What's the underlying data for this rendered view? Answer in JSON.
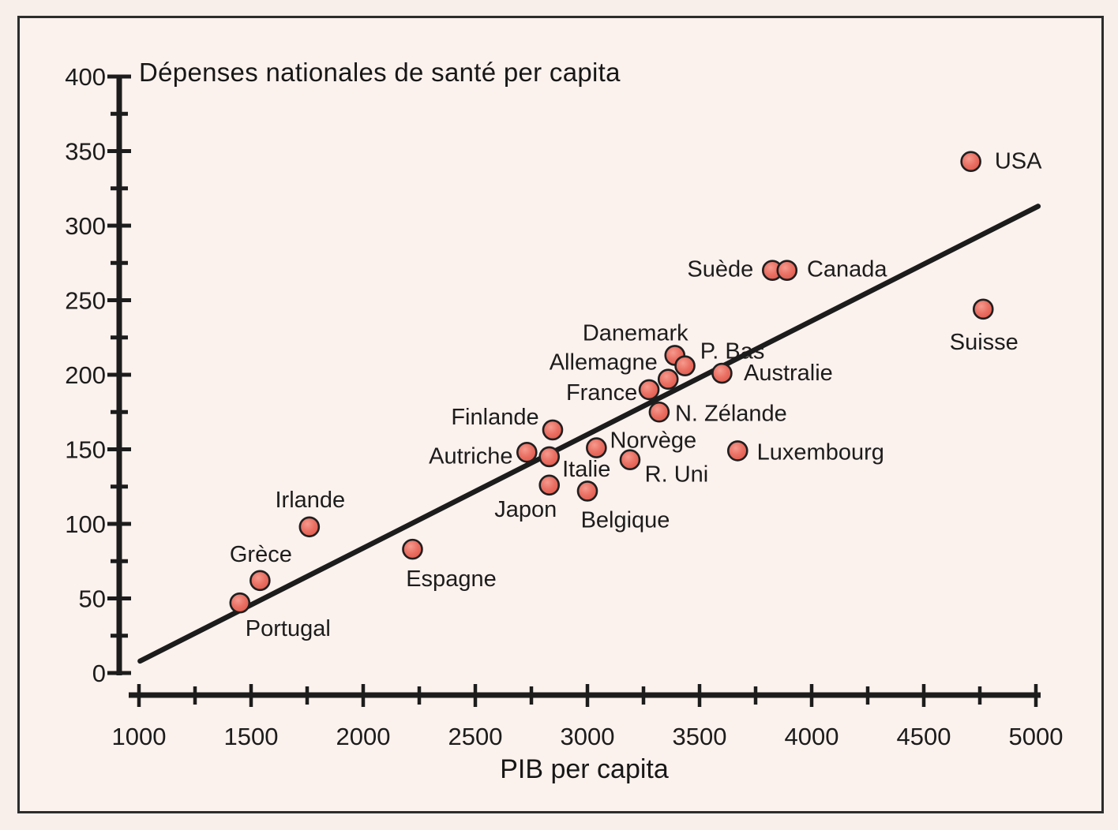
{
  "colors": {
    "background": "#fbf1ed",
    "ink": "#1c1c1c",
    "frame_border": "#2c2c2c",
    "dot_fill": "#e8685c",
    "dot_fill_light": "#f59a8e",
    "dot_fill_dark": "#dd5246",
    "dot_stroke": "#1f1f1f"
  },
  "chart_data": {
    "type": "scatter",
    "title": "Dépenses nationales de santé per capita",
    "xlabel": "PIB per capita",
    "ylabel": "",
    "xlim": [
      1000,
      5000
    ],
    "ylim": [
      0,
      400
    ],
    "grid": false,
    "legend": "none",
    "x_ticks": {
      "major": [
        1000,
        1500,
        2000,
        2500,
        3000,
        3500,
        4000,
        4500,
        5000
      ],
      "minor": [
        1250,
        1750,
        2250,
        2750,
        3250,
        3750,
        4250,
        4750
      ]
    },
    "y_ticks": {
      "major": [
        0,
        50,
        100,
        150,
        200,
        250,
        300,
        350,
        400
      ],
      "minor": [
        25,
        75,
        125,
        175,
        225,
        275,
        325,
        375
      ]
    },
    "trend_line": {
      "x1": 1005,
      "y1": 8,
      "x2": 5010,
      "y2": 313
    },
    "points": [
      {
        "name": "Portugal",
        "x": 1450,
        "y": 47,
        "label_offset": [
          61,
          32
        ]
      },
      {
        "name": "Grèce",
        "x": 1540,
        "y": 62,
        "label_offset": [
          1,
          -34
        ]
      },
      {
        "name": "Irlande",
        "x": 1760,
        "y": 98,
        "label_offset": [
          1,
          -35
        ]
      },
      {
        "name": "Espagne",
        "x": 2220,
        "y": 83,
        "label_offset": [
          49,
          37
        ]
      },
      {
        "name": "Japon",
        "x": 2830,
        "y": 126,
        "label_offset": [
          -30,
          30
        ]
      },
      {
        "name": "Belgique",
        "x": 3000,
        "y": 122,
        "label_offset": [
          48,
          36
        ]
      },
      {
        "name": "Autriche",
        "x": 2730,
        "y": 148,
        "label_offset": [
          -71,
          4
        ]
      },
      {
        "name": "Italie",
        "x": 2830,
        "y": 145,
        "label_offset": [
          47,
          15
        ]
      },
      {
        "name": "Finlande",
        "x": 2845,
        "y": 163,
        "label_offset": [
          -73,
          -17
        ]
      },
      {
        "name": "Norvège",
        "x": 3040,
        "y": 151,
        "label_offset": [
          72,
          -10
        ]
      },
      {
        "name": "R. Uni",
        "x": 3190,
        "y": 143,
        "label_offset": [
          59,
          18
        ]
      },
      {
        "name": "N. Zélande",
        "x": 3320,
        "y": 175,
        "label_offset": [
          91,
          1
        ]
      },
      {
        "name": "France",
        "x": 3275,
        "y": 190,
        "label_offset": [
          -60,
          3
        ]
      },
      {
        "name": "Allemagne",
        "x": 3360,
        "y": 197,
        "label_offset": [
          -82,
          -22
        ]
      },
      {
        "name": "Danemark",
        "x": 3390,
        "y": 213,
        "label_offset": [
          -50,
          -29
        ]
      },
      {
        "name": "P. Bas",
        "x": 3435,
        "y": 206,
        "label_offset": [
          60,
          -19
        ]
      },
      {
        "name": "Australie",
        "x": 3600,
        "y": 201,
        "label_offset": [
          84,
          -1
        ]
      },
      {
        "name": "Luxembourg",
        "x": 3670,
        "y": 149,
        "label_offset": [
          105,
          1
        ]
      },
      {
        "name": "Suède",
        "x": 3825,
        "y": 270,
        "label_offset": [
          -66,
          -2
        ]
      },
      {
        "name": "Canada",
        "x": 3890,
        "y": 270,
        "label_offset": [
          76,
          -2
        ]
      },
      {
        "name": "USA",
        "x": 4710,
        "y": 343,
        "label_offset": [
          60,
          -1
        ]
      },
      {
        "name": "Suisse",
        "x": 4765,
        "y": 244,
        "label_offset": [
          1,
          41
        ]
      }
    ]
  }
}
